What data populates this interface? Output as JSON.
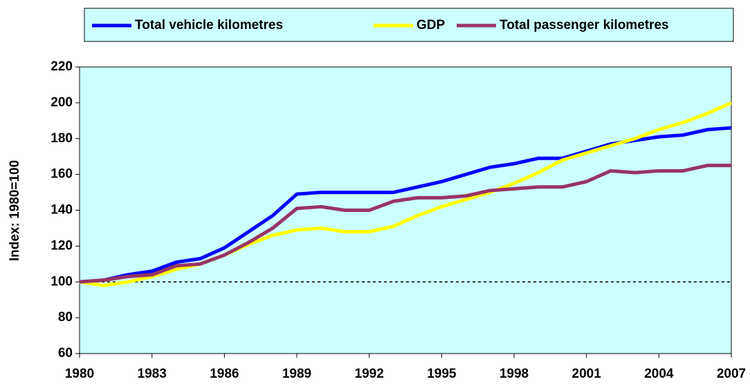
{
  "chart_data": {
    "type": "line",
    "y_label": "Index: 1980=100",
    "x": [
      1980,
      1981,
      1982,
      1983,
      1984,
      1985,
      1986,
      1987,
      1988,
      1989,
      1990,
      1991,
      1992,
      1993,
      1994,
      1995,
      1996,
      1997,
      1998,
      1999,
      2000,
      2001,
      2002,
      2003,
      2004,
      2005,
      2006,
      2007
    ],
    "series": [
      {
        "name": "Total vehicle kilometres",
        "color": "#0000ff",
        "values": [
          100,
          101,
          104,
          106,
          111,
          113,
          119,
          128,
          137,
          149,
          150,
          150,
          150,
          150,
          153,
          156,
          160,
          164,
          166,
          169,
          169,
          173,
          177,
          179,
          181,
          182,
          185,
          186
        ]
      },
      {
        "name": "GDP",
        "color": "#ffff00",
        "values": [
          100,
          98,
          100,
          103,
          107,
          110,
          115,
          121,
          126,
          129,
          130,
          128,
          128,
          131,
          137,
          142,
          146,
          150,
          155,
          161,
          168,
          172,
          176,
          180,
          185,
          189,
          194,
          200
        ]
      },
      {
        "name": "Total passenger kilometres",
        "color": "#993366",
        "values": [
          100,
          101,
          103,
          104,
          109,
          110,
          115,
          122,
          130,
          141,
          142,
          140,
          140,
          145,
          147,
          147,
          148,
          151,
          152,
          153,
          153,
          156,
          162,
          161,
          162,
          162,
          165,
          165
        ]
      }
    ],
    "reference_line": 100,
    "xlim": [
      1980,
      2007
    ],
    "xticks": [
      1980,
      1983,
      1986,
      1989,
      1992,
      1995,
      1998,
      2001,
      2004,
      2007
    ],
    "ylim": [
      60,
      220
    ],
    "yticks": [
      60,
      80,
      100,
      120,
      140,
      160,
      180,
      200,
      220
    ],
    "legend": "top",
    "background": "#ccffff"
  }
}
